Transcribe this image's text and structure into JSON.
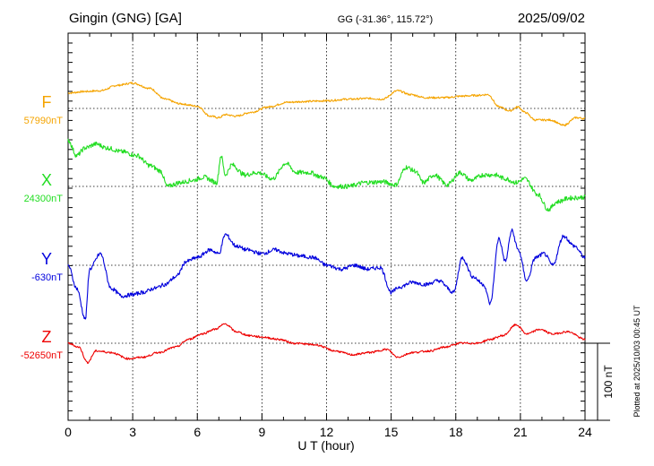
{
  "header": {
    "station": "Gingin (GNG)  [GA]",
    "coords": "GG (-31.36°, 115.72°)",
    "date": "2025/09/02"
  },
  "footer": {
    "plotted": "Plotted at 2025/10/03 00:45 UT",
    "scale_label": "100 nT"
  },
  "chart_data": {
    "type": "line",
    "xlabel": "U T (hour)",
    "xlim": [
      0,
      24
    ],
    "x_ticks": [
      "0",
      "3",
      "6",
      "9",
      "12",
      "15",
      "18",
      "21",
      "24"
    ],
    "y_unit": "nT",
    "scale_bar_nT": 100,
    "grid": true,
    "series": [
      {
        "name": "F",
        "baseline_label": "57990nT",
        "color": "#f5a400",
        "x": [
          0,
          0.8,
          1.5,
          2.3,
          3.0,
          3.8,
          4.5,
          5.2,
          6.0,
          6.6,
          7.0,
          7.3,
          7.8,
          8.5,
          9.3,
          10.2,
          11.0,
          12.0,
          13.0,
          14.0,
          14.6,
          15.3,
          15.9,
          16.6,
          17.5,
          18.3,
          19.0,
          19.5,
          20.0,
          20.5,
          20.9,
          21.2,
          21.7,
          22.4,
          23.0,
          23.6,
          24.0
        ],
        "values": [
          20,
          22,
          23,
          30,
          33,
          26,
          12,
          6,
          3,
          -10,
          -12,
          -8,
          -10,
          -5,
          2,
          8,
          9,
          10,
          12,
          13,
          12,
          23,
          18,
          14,
          14,
          16,
          17,
          18,
          2,
          -3,
          2,
          -5,
          -15,
          -15,
          -22,
          -12,
          -13
        ]
      },
      {
        "name": "X",
        "baseline_label": "24300nT",
        "color": "#22dd22",
        "x": [
          0,
          0.4,
          0.8,
          1.3,
          1.8,
          2.5,
          3.2,
          3.8,
          4.3,
          4.6,
          5.2,
          5.8,
          6.3,
          6.9,
          7.1,
          7.3,
          7.6,
          8.2,
          8.8,
          9.5,
          10.1,
          10.6,
          11.2,
          11.8,
          12.4,
          13.0,
          13.8,
          14.6,
          15.2,
          15.7,
          16.1,
          16.5,
          17.0,
          17.6,
          18.2,
          18.7,
          19.3,
          19.8,
          20.3,
          20.8,
          21.2,
          21.8,
          22.3,
          22.7,
          23.3,
          24.0
        ],
        "values": [
          60,
          40,
          50,
          55,
          50,
          45,
          40,
          27,
          20,
          0,
          5,
          8,
          12,
          5,
          40,
          15,
          28,
          15,
          18,
          10,
          30,
          18,
          18,
          12,
          0,
          0,
          5,
          6,
          2,
          25,
          20,
          5,
          15,
          2,
          18,
          8,
          15,
          15,
          10,
          5,
          10,
          -10,
          -30,
          -20,
          -15,
          -14
        ]
      },
      {
        "name": "Y",
        "baseline_label": "-630nT",
        "color": "#0000dd",
        "x": [
          0,
          0.4,
          0.8,
          1.0,
          1.5,
          2.0,
          2.5,
          3.0,
          3.5,
          4.0,
          4.5,
          5.0,
          5.5,
          6.0,
          6.6,
          7.0,
          7.3,
          7.8,
          8.3,
          9.0,
          9.6,
          10.2,
          10.8,
          11.4,
          12.0,
          12.7,
          13.3,
          13.9,
          14.5,
          15.0,
          15.4,
          16.0,
          16.6,
          17.2,
          17.9,
          18.3,
          18.8,
          19.3,
          19.6,
          20.0,
          20.3,
          20.6,
          20.9,
          21.3,
          21.7,
          22.1,
          22.5,
          23.0,
          23.5,
          24.0
        ],
        "values": [
          0,
          -30,
          -70,
          -5,
          15,
          -30,
          -40,
          -38,
          -35,
          -30,
          -25,
          -15,
          5,
          10,
          20,
          15,
          40,
          25,
          20,
          15,
          20,
          15,
          12,
          10,
          0,
          -5,
          0,
          -5,
          -3,
          -35,
          -28,
          -22,
          -25,
          -20,
          -35,
          10,
          -15,
          -25,
          -50,
          35,
          5,
          45,
          20,
          -20,
          10,
          15,
          0,
          38,
          25,
          10
        ]
      },
      {
        "name": "Z",
        "baseline_label": "-52650nT",
        "color": "#ee0000",
        "x": [
          0,
          0.5,
          0.9,
          1.3,
          2.0,
          2.8,
          3.5,
          4.2,
          5.0,
          5.6,
          6.2,
          6.8,
          7.3,
          7.8,
          8.4,
          9.0,
          9.8,
          10.5,
          11.5,
          12.4,
          13.2,
          14.0,
          14.8,
          15.3,
          16.0,
          16.8,
          17.5,
          18.2,
          19.0,
          19.6,
          20.2,
          20.8,
          21.3,
          21.9,
          22.5,
          23.2,
          24.0
        ],
        "values": [
          0,
          -5,
          -25,
          -10,
          -12,
          -20,
          -18,
          -12,
          -5,
          5,
          12,
          18,
          25,
          15,
          10,
          8,
          5,
          0,
          -2,
          -10,
          -15,
          -12,
          -8,
          -18,
          -12,
          -10,
          -5,
          0,
          0,
          5,
          10,
          24,
          12,
          18,
          12,
          15,
          5
        ]
      }
    ]
  }
}
